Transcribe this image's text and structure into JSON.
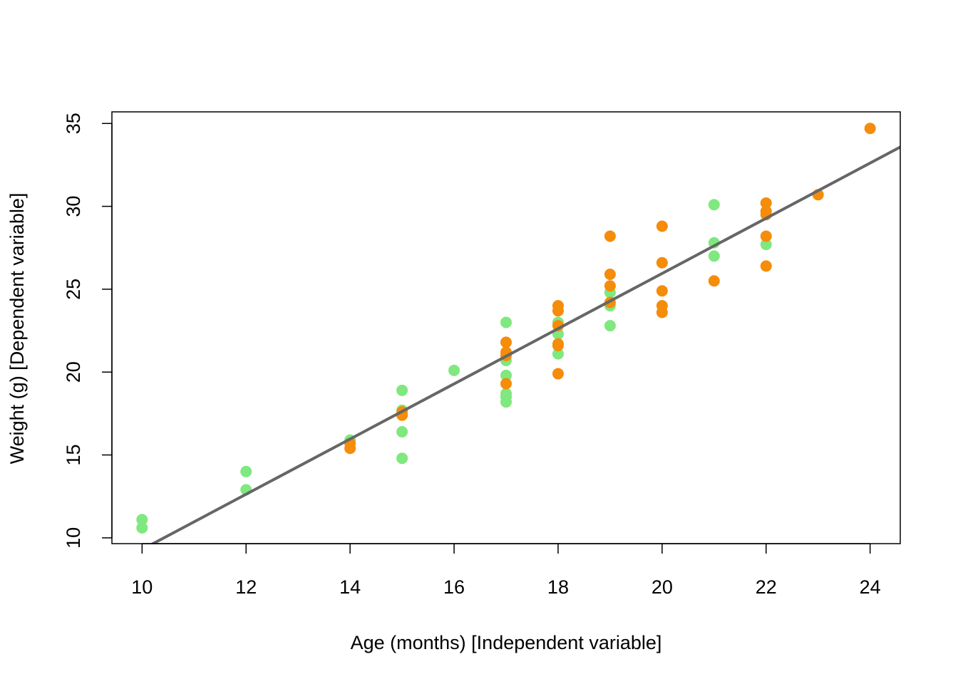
{
  "chart_data": {
    "type": "scatter",
    "title": "",
    "xlabel": "Age (months) [Independent variable]",
    "ylabel": "Weight (g) [Dependent variable]",
    "xlim": [
      9.42,
      24.58
    ],
    "ylim": [
      9.65,
      35.7
    ],
    "x_ticks": [
      10,
      12,
      14,
      16,
      18,
      20,
      22,
      24
    ],
    "y_ticks": [
      10,
      15,
      20,
      25,
      30,
      35
    ],
    "grid": false,
    "legend": "none",
    "colors": {
      "green": "#7fe87f",
      "orange": "#f58c0a",
      "line": "#666666"
    },
    "series": [
      {
        "color": "#7fe87f",
        "points": [
          [
            10,
            11.1
          ],
          [
            10,
            10.6
          ],
          [
            12,
            14.0
          ],
          [
            12,
            12.9
          ],
          [
            14,
            15.9
          ],
          [
            15,
            18.9
          ],
          [
            15,
            17.7
          ],
          [
            15,
            16.4
          ],
          [
            15,
            14.8
          ],
          [
            16,
            20.1
          ],
          [
            17,
            23.0
          ],
          [
            17,
            20.7
          ],
          [
            17,
            19.8
          ],
          [
            17,
            18.7
          ],
          [
            17,
            18.5
          ],
          [
            17,
            18.2
          ],
          [
            18,
            23.0
          ],
          [
            18,
            22.3
          ],
          [
            18,
            21.1
          ],
          [
            19,
            24.8
          ],
          [
            19,
            24.0
          ],
          [
            19,
            22.8
          ],
          [
            21,
            30.1
          ],
          [
            21,
            27.8
          ],
          [
            21,
            27.0
          ],
          [
            22,
            27.7
          ]
        ]
      },
      {
        "color": "#f58c0a",
        "points": [
          [
            14,
            15.7
          ],
          [
            14,
            15.4
          ],
          [
            15,
            17.6
          ],
          [
            15,
            17.4
          ],
          [
            17,
            21.8
          ],
          [
            17,
            21.2
          ],
          [
            17,
            21.0
          ],
          [
            17,
            19.3
          ],
          [
            18,
            24.0
          ],
          [
            18,
            23.7
          ],
          [
            18,
            22.8
          ],
          [
            18,
            21.7
          ],
          [
            18,
            21.6
          ],
          [
            18,
            19.9
          ],
          [
            19,
            28.2
          ],
          [
            19,
            25.9
          ],
          [
            19,
            25.2
          ],
          [
            19,
            24.2
          ],
          [
            20,
            28.8
          ],
          [
            20,
            26.6
          ],
          [
            20,
            24.9
          ],
          [
            20,
            24.0
          ],
          [
            20,
            23.6
          ],
          [
            21,
            25.5
          ],
          [
            22,
            30.2
          ],
          [
            22,
            29.7
          ],
          [
            22,
            29.5
          ],
          [
            22,
            28.2
          ],
          [
            22,
            26.4
          ],
          [
            23,
            30.7
          ],
          [
            24,
            34.7
          ]
        ]
      }
    ],
    "fit_line": {
      "slope": 1.665,
      "intercept": -7.35
    }
  }
}
